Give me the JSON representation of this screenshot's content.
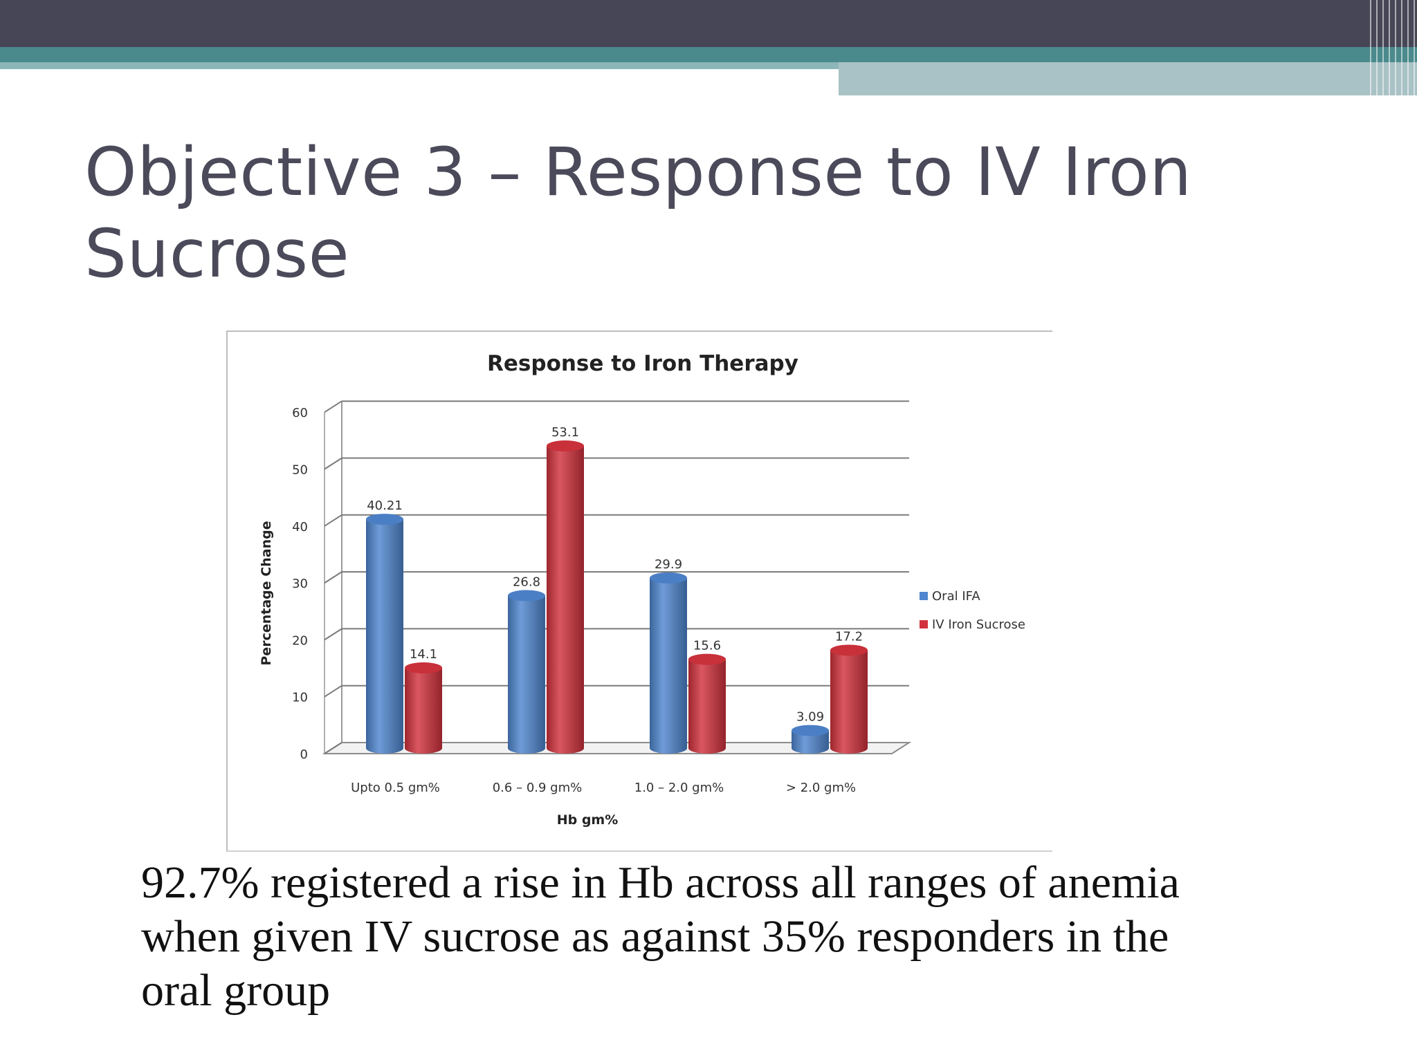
{
  "slide": {
    "title_lines": [
      "Objective 3 – Response to  IV Iron",
      "Sucrose"
    ],
    "caption_lines": [
      "92.7% registered a rise in Hb across all ranges of anemia",
      "when given IV sucrose as against 35% responders in the",
      "oral group"
    ]
  },
  "chart_data": {
    "type": "bar",
    "title": "Response to Iron Therapy",
    "xlabel": "Hb  gm%",
    "ylabel": "Percentage Change",
    "categories": [
      "Upto 0.5 gm%",
      "0.6 – 0.9 gm%",
      "1.0 – 2.0 gm%",
      "> 2.0 gm%"
    ],
    "series": [
      {
        "name": "Oral IFA",
        "color": "#4f86cf",
        "values": [
          40.21,
          26.8,
          29.9,
          3.09
        ],
        "labels": [
          "40.21",
          "26.8",
          "29.9",
          "3.09"
        ]
      },
      {
        "name": "IV Iron Sucrose",
        "color": "#d2323d",
        "values": [
          14.1,
          53.1,
          15.6,
          17.2
        ],
        "labels": [
          "14.1",
          "53.1",
          "15.6",
          "17.2"
        ]
      }
    ],
    "ylim": [
      0,
      60
    ],
    "yticks": [
      "0",
      "10",
      "20",
      "30",
      "40",
      "50",
      "60"
    ],
    "grid": true,
    "legend_position": "right",
    "style": "3d-cylinder"
  }
}
